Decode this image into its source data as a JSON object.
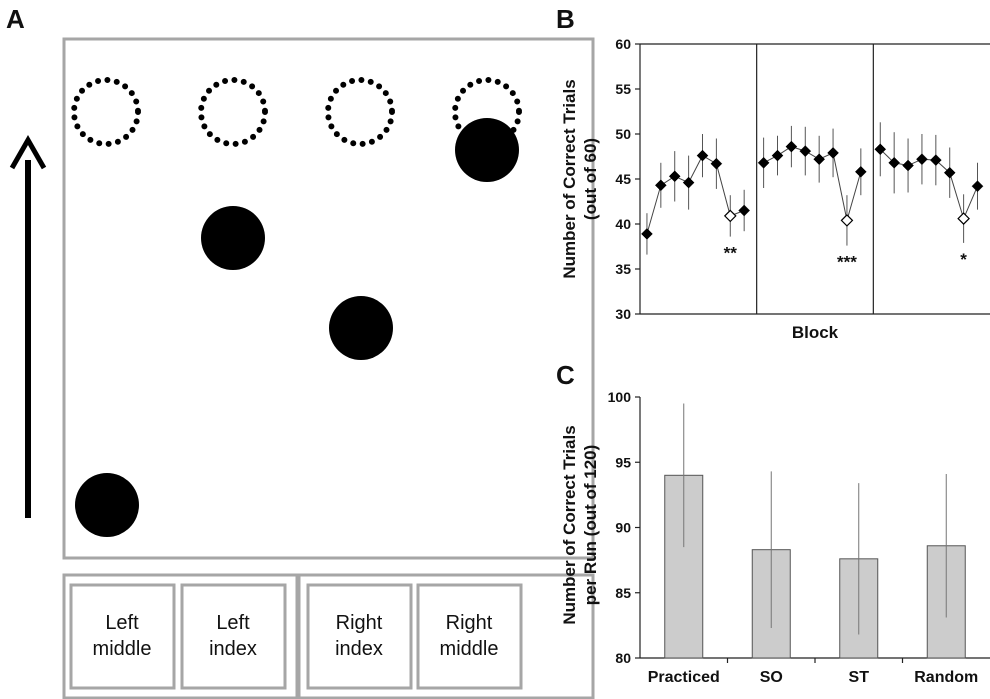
{
  "panels": {
    "a": "A",
    "b": "B",
    "c": "C"
  },
  "keys": [
    {
      "line1": "Left",
      "line2": "middle"
    },
    {
      "line1": "Left",
      "line2": "index"
    },
    {
      "line1": "Right",
      "line2": "index"
    },
    {
      "line1": "Right",
      "line2": "middle"
    }
  ],
  "chart_data": [
    {
      "type": "line",
      "panel": "B",
      "xlabel": "Block",
      "ylabel_line1": "Number of Correct Trials",
      "ylabel_line2": "(out of 60)",
      "ylim": [
        30,
        60
      ],
      "yticks": [
        30,
        35,
        40,
        45,
        50,
        55,
        60
      ],
      "grid": false,
      "segments": [
        {
          "values": [
            38.9,
            44.3,
            45.3,
            44.6,
            47.6,
            46.7,
            40.9,
            41.5
          ],
          "errors": [
            2.3,
            2.5,
            2.8,
            3.0,
            2.4,
            2.8,
            2.3,
            2.3
          ],
          "probe_index": 6,
          "significance": "**"
        },
        {
          "values": [
            46.8,
            47.6,
            48.6,
            48.1,
            47.2,
            47.9,
            40.4,
            45.8
          ],
          "errors": [
            2.8,
            2.2,
            2.3,
            2.7,
            2.6,
            2.7,
            2.8,
            2.6
          ],
          "probe_index": 6,
          "significance": "***"
        },
        {
          "values": [
            48.3,
            46.8,
            46.5,
            47.2,
            47.1,
            45.7,
            40.6,
            44.2
          ],
          "errors": [
            3.0,
            3.4,
            3.0,
            2.8,
            2.8,
            2.8,
            2.7,
            2.6
          ],
          "probe_index": 6,
          "significance": "*"
        }
      ]
    },
    {
      "type": "bar",
      "panel": "C",
      "categories": [
        "Practiced",
        "SO",
        "ST",
        "Random"
      ],
      "values": [
        94.0,
        88.3,
        87.6,
        88.6
      ],
      "errors": [
        5.5,
        6.0,
        5.8,
        5.5
      ],
      "ylabel_line1": "Number of Correct Trials",
      "ylabel_line2": "per Run (out of 120)",
      "ylim": [
        80,
        100
      ],
      "yticks": [
        80,
        85,
        90,
        95,
        100
      ],
      "bar_color": "#cccccc"
    }
  ]
}
